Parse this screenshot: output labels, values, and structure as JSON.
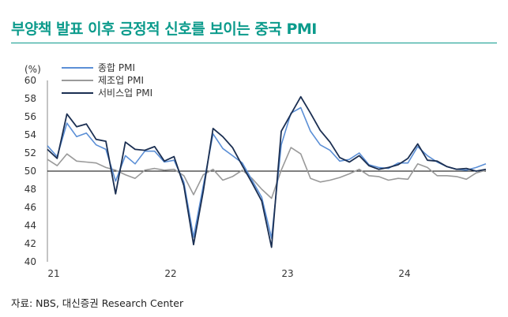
{
  "title": "부양책 발표 이후 긍정적 신호를 보이는 중국 PMI",
  "source": "자료: NBS, 대신증권 Research Center",
  "colors": {
    "title": "#0c9b8c",
    "composite": "#5b8fd6",
    "manufacturing": "#9a9a9a",
    "services": "#1b2f52",
    "refline": "#000000"
  },
  "chart_data": {
    "type": "line",
    "yunit": "(%)",
    "ylim": [
      40,
      60
    ],
    "yticks": [
      40,
      42,
      44,
      46,
      48,
      50,
      52,
      54,
      56,
      58,
      60
    ],
    "xlim": [
      "2021-01",
      "2024-10"
    ],
    "xtick_labels": [
      {
        "label": "21",
        "month": "2021-01"
      },
      {
        "label": "22",
        "month": "2022-01"
      },
      {
        "label": "23",
        "month": "2023-01"
      },
      {
        "label": "24",
        "month": "2024-01"
      }
    ],
    "reference_line": 50,
    "grid": false,
    "legend_position": "top-left",
    "months": [
      "2021-01",
      "2021-02",
      "2021-03",
      "2021-04",
      "2021-05",
      "2021-06",
      "2021-07",
      "2021-08",
      "2021-09",
      "2021-10",
      "2021-11",
      "2021-12",
      "2022-01",
      "2022-02",
      "2022-03",
      "2022-04",
      "2022-05",
      "2022-06",
      "2022-07",
      "2022-08",
      "2022-09",
      "2022-10",
      "2022-11",
      "2022-12",
      "2023-01",
      "2023-02",
      "2023-03",
      "2023-04",
      "2023-05",
      "2023-06",
      "2023-07",
      "2023-08",
      "2023-09",
      "2023-10",
      "2023-11",
      "2023-12",
      "2024-01",
      "2024-02",
      "2024-03",
      "2024-04",
      "2024-05",
      "2024-06",
      "2024-07",
      "2024-08",
      "2024-09",
      "2024-10"
    ],
    "series": [
      {
        "name": "종합 PMI",
        "color": "#5b8fd6",
        "values": [
          52.8,
          51.6,
          55.3,
          53.8,
          54.2,
          52.9,
          52.4,
          48.9,
          51.7,
          50.8,
          52.2,
          52.2,
          51.0,
          51.2,
          48.8,
          42.7,
          48.4,
          54.1,
          52.5,
          51.7,
          50.9,
          49.0,
          47.1,
          42.6,
          52.9,
          56.4,
          57.0,
          54.4,
          52.9,
          52.3,
          51.1,
          51.3,
          52.0,
          50.7,
          50.4,
          50.3,
          50.9,
          50.9,
          52.7,
          51.7,
          51.0,
          50.5,
          50.2,
          50.1,
          50.4,
          50.8
        ]
      },
      {
        "name": "제조업 PMI",
        "color": "#9a9a9a",
        "values": [
          51.3,
          50.6,
          51.9,
          51.1,
          51.0,
          50.9,
          50.4,
          50.1,
          49.6,
          49.2,
          50.1,
          50.3,
          50.1,
          50.2,
          49.5,
          47.4,
          49.6,
          50.2,
          49.0,
          49.4,
          50.1,
          49.2,
          48.0,
          47.0,
          50.1,
          52.6,
          51.9,
          49.2,
          48.8,
          49.0,
          49.3,
          49.7,
          50.2,
          49.5,
          49.4,
          49.0,
          49.2,
          49.1,
          50.8,
          50.4,
          49.5,
          49.5,
          49.4,
          49.1,
          49.8,
          50.1
        ]
      },
      {
        "name": "서비스업 PMI",
        "color": "#1b2f52",
        "values": [
          52.4,
          51.4,
          56.3,
          54.9,
          55.2,
          53.5,
          53.3,
          47.5,
          53.2,
          52.4,
          52.3,
          52.7,
          51.1,
          51.6,
          48.4,
          41.9,
          47.8,
          54.7,
          53.8,
          52.6,
          50.6,
          48.7,
          46.7,
          41.6,
          54.4,
          56.3,
          58.2,
          56.4,
          54.5,
          53.2,
          51.5,
          51.0,
          51.7,
          50.6,
          50.2,
          50.4,
          50.7,
          51.4,
          53.0,
          51.2,
          51.1,
          50.5,
          50.2,
          50.3,
          50.0,
          50.2
        ]
      }
    ]
  }
}
